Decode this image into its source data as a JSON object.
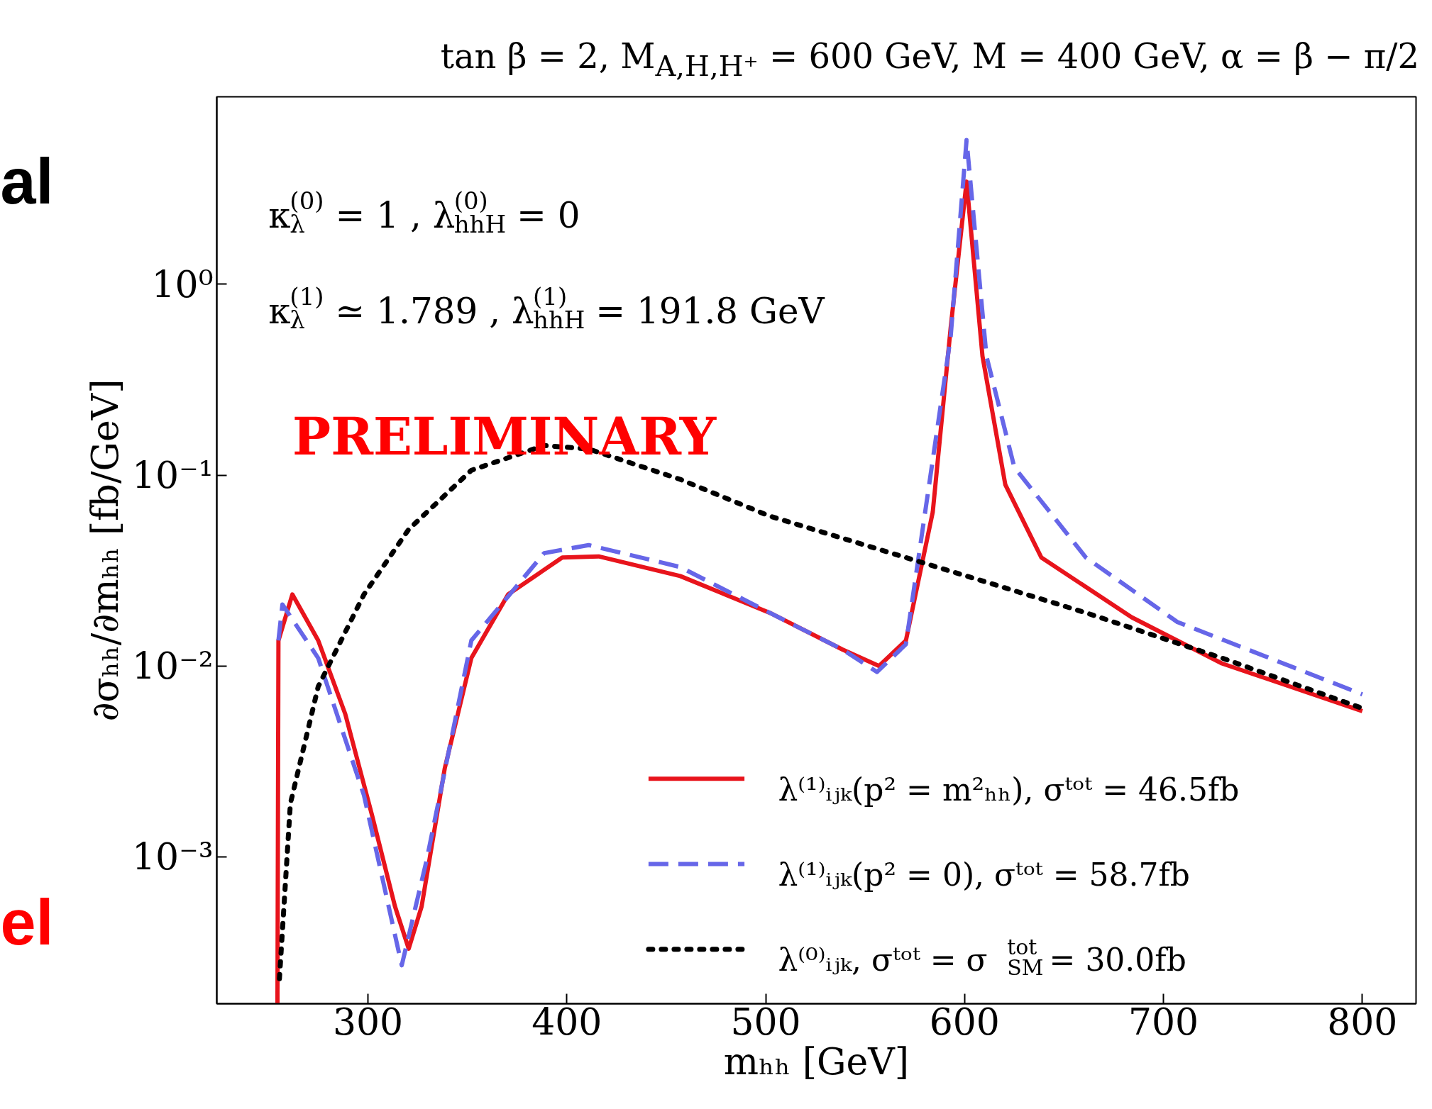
{
  "chart_data": {
    "type": "line",
    "title": "tan β = 2, M$_{A,H,H⁺}$ = 600 GeV, M = 400 GeV, α = β − π/2",
    "xlabel": "mₕₕ [GeV]",
    "ylabel": "∂σₕₕ/∂mₕₕ [fb/GeV]",
    "log": "y",
    "grid": false,
    "legend": "bottom right",
    "xlim": [
      224,
      827
    ],
    "xticks": [
      300,
      400,
      500,
      600,
      700,
      800
    ],
    "ylim": [
      0.00017,
      9.6
    ],
    "yticks": [
      {
        "value": 0.001,
        "label": "10⁻³"
      },
      {
        "value": 0.01,
        "label": "10⁻²"
      },
      {
        "value": 0.1,
        "label": "10⁻¹"
      },
      {
        "value": 1,
        "label": "10⁰"
      }
    ],
    "annotations": [
      "κ$_{λ}$$^{(0)}$ = 1 , λ$_{hhH}$$^{(0)}$ = 0",
      "κ$_{λ}$$^{(1)}$ ≃ 1.789 , λ$_{hhH}$$^{(1)}$ = 191.8 GeV",
      "PRELIMINARY",
      "al",
      "el"
    ],
    "series": [
      {
        "name": "λ⁽¹⁾ᵢⱼₖ(p² = m²ₕₕ), σᵗᵒᵗ = 46.5fb",
        "color": "#e8141c",
        "line_style": "solid",
        "x": [
          254.5,
          255,
          262,
          275,
          288.6,
          302,
          313.6,
          320.5,
          327,
          338.6,
          352,
          370.5,
          397.7,
          416,
          457,
          502,
          538.6,
          557,
          570.5,
          584,
          593,
          601,
          609,
          620.5,
          638.6,
          684,
          729.5,
          800
        ],
        "values": [
          0.00017,
          0.0136,
          0.0237,
          0.0136,
          0.0056,
          0.00166,
          0.00055,
          0.00033,
          0.00055,
          0.0029,
          0.011,
          0.0237,
          0.037,
          0.0375,
          0.0296,
          0.019,
          0.0122,
          0.01,
          0.0136,
          0.064,
          0.59,
          3.45,
          0.42,
          0.089,
          0.037,
          0.018,
          0.0103,
          0.0058
        ]
      },
      {
        "name": "λ⁽¹⁾ᵢⱼₖ(p² = 0), σᵗᵒᵗ = 58.7fb",
        "color": "#6666e8",
        "line_style": "dashed",
        "x": [
          255,
          257,
          275,
          298,
          317,
          329.5,
          352,
          388.6,
          411,
          457,
          502,
          538.6,
          556,
          570.5,
          593,
          601,
          611,
          625,
          661,
          707,
          800
        ],
        "values": [
          0.0136,
          0.021,
          0.011,
          0.0021,
          0.00027,
          0.00096,
          0.0136,
          0.039,
          0.043,
          0.033,
          0.019,
          0.0122,
          0.0093,
          0.013,
          0.53,
          5.7,
          0.42,
          0.11,
          0.037,
          0.017,
          0.0071
        ]
      },
      {
        "name": "λ⁽⁰⁾ᵢⱼₖ, σᵗᵒᵗ = σ$_{SM}$$^{tot}$ = 30.0fb",
        "color": "#000000",
        "line_style": "dotted",
        "x": [
          255.5,
          261,
          275,
          298,
          320.5,
          352,
          388.6,
          411,
          457,
          502,
          570.5,
          616,
          661,
          729.5,
          800
        ],
        "values": [
          0.00023,
          0.0019,
          0.0078,
          0.0237,
          0.052,
          0.106,
          0.143,
          0.137,
          0.095,
          0.061,
          0.037,
          0.0265,
          0.019,
          0.011,
          0.006
        ]
      }
    ]
  }
}
